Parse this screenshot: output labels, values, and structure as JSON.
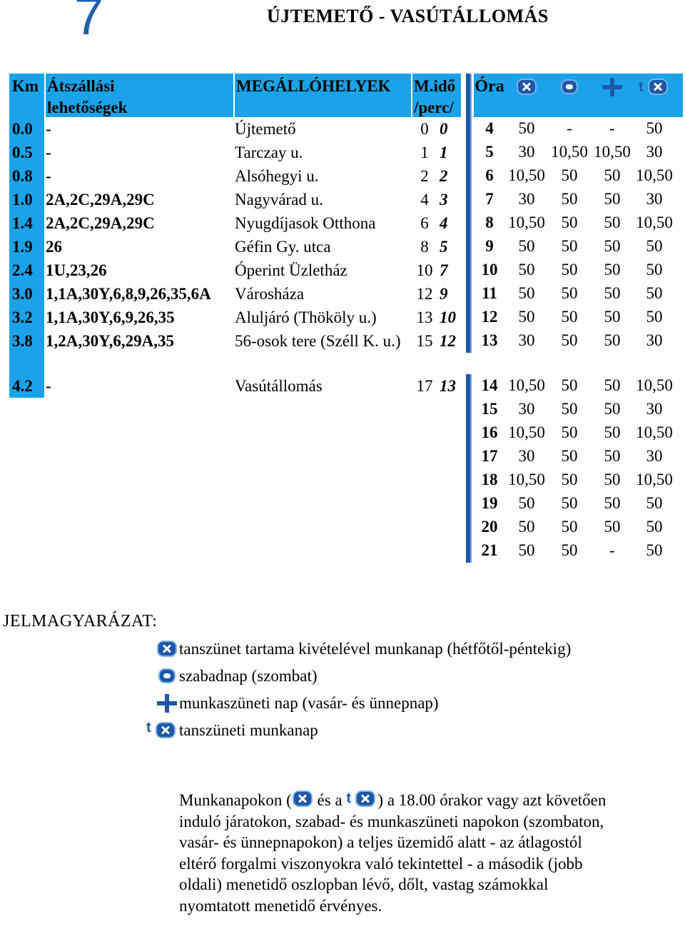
{
  "header": {
    "route_number": "7",
    "title": "ÚJTEMETŐ - VASÚTÁLLOMÁS"
  },
  "stops_table": {
    "headers": {
      "km": "Km",
      "transfers_line1": "Átszállási",
      "transfers_line2": "lehetőségek",
      "stops": "MEGÁLLÓHELYEK",
      "time_line1": "M.idő",
      "time_line2": "/perc/"
    },
    "rows": [
      {
        "km": "0.0",
        "transfers": "-",
        "stop": "Újtemető",
        "time": "0",
        "time_rush": "0"
      },
      {
        "km": "0.5",
        "transfers": "-",
        "stop": "Tarczay u.",
        "time": "1",
        "time_rush": "1"
      },
      {
        "km": "0.8",
        "transfers": "-",
        "stop": "Alsóhegyi u.",
        "time": "2",
        "time_rush": "2"
      },
      {
        "km": "1.0",
        "transfers": "2A,2C,29A,29C",
        "stop": "Nagyvárad u.",
        "time": "4",
        "time_rush": "3"
      },
      {
        "km": "1.4",
        "transfers": "2A,2C,29A,29C",
        "stop": "Nyugdíjasok Otthona",
        "time": "6",
        "time_rush": "4"
      },
      {
        "km": "1.9",
        "transfers": "26",
        "stop": "Géfin Gy. utca",
        "time": "8",
        "time_rush": "5"
      },
      {
        "km": "2.4",
        "transfers": "1U,23,26",
        "stop": "Óperint Üzletház",
        "time": "10",
        "time_rush": "7"
      },
      {
        "km": "3.0",
        "transfers": "1,1A,30Y,6,8,9,26,35,6A",
        "stop": "Városháza",
        "time": "12",
        "time_rush": "9"
      },
      {
        "km": "3.2",
        "transfers": "1,1A,30Y,6,9,26,35",
        "stop": "Aluljáró (Thököly u.)",
        "time": "13",
        "time_rush": "10"
      },
      {
        "km": "3.8",
        "transfers": "1,2A,30Y,6,29A,35",
        "stop": "56-osok tere (Széll K. u.)",
        "time": "15",
        "time_rush": "12"
      },
      {
        "km": "4.2",
        "transfers": "-",
        "stop": "Vasútállomás",
        "time": "17",
        "time_rush": "13"
      }
    ]
  },
  "times_table": {
    "headers": {
      "hour": "Óra"
    },
    "column_icons": [
      "x-workday-icon",
      "circle-saturday-icon",
      "plus-holiday-icon",
      "t-x-school-break-icon"
    ],
    "rows": [
      {
        "h": "4",
        "c": [
          "50",
          "-",
          "-",
          "50"
        ]
      },
      {
        "h": "5",
        "c": [
          "30",
          "10,50",
          "10,50",
          "30"
        ]
      },
      {
        "h": "6",
        "c": [
          "10,50",
          "50",
          "50",
          "10,50"
        ]
      },
      {
        "h": "7",
        "c": [
          "30",
          "50",
          "50",
          "30"
        ]
      },
      {
        "h": "8",
        "c": [
          "10,50",
          "50",
          "50",
          "10,50"
        ]
      },
      {
        "h": "9",
        "c": [
          "50",
          "50",
          "50",
          "50"
        ]
      },
      {
        "h": "10",
        "c": [
          "50",
          "50",
          "50",
          "50"
        ]
      },
      {
        "h": "11",
        "c": [
          "50",
          "50",
          "50",
          "50"
        ]
      },
      {
        "h": "12",
        "c": [
          "50",
          "50",
          "50",
          "50"
        ]
      },
      {
        "h": "13",
        "c": [
          "30",
          "50",
          "50",
          "30"
        ]
      },
      {
        "h": "14",
        "c": [
          "10,50",
          "50",
          "50",
          "10,50"
        ]
      },
      {
        "h": "15",
        "c": [
          "30",
          "50",
          "50",
          "30"
        ]
      },
      {
        "h": "16",
        "c": [
          "10,50",
          "50",
          "50",
          "10,50"
        ]
      },
      {
        "h": "17",
        "c": [
          "30",
          "50",
          "50",
          "30"
        ]
      },
      {
        "h": "18",
        "c": [
          "10,50",
          "50",
          "50",
          "10,50"
        ]
      },
      {
        "h": "19",
        "c": [
          "50",
          "50",
          "50",
          "50"
        ]
      },
      {
        "h": "20",
        "c": [
          "50",
          "50",
          "50",
          "50"
        ]
      },
      {
        "h": "21",
        "c": [
          "50",
          "50",
          "-",
          "50"
        ]
      }
    ]
  },
  "legend": {
    "title": "JELMAGYARÁZAT:",
    "items": [
      {
        "icon": "x-workday-icon",
        "label": "tanszünet tartama kivételével munkanap (hétfőtől-péntekig)"
      },
      {
        "icon": "circle-saturday-icon",
        "label": "szabadnap (szombat)"
      },
      {
        "icon": "plus-holiday-icon",
        "label": "munkaszüneti nap (vasár- és ünnepnap)"
      },
      {
        "icon": "t-x-school-break-icon",
        "label": "tanszüneti munkanap"
      }
    ]
  },
  "note": {
    "part1": "Munkanapokon (",
    "part2": " és a ",
    "part3": ") a 18.00 órakor vagy azt követően induló járatokon, szabad- és munkaszüneti napokon (szombaton, vasár- és ünnepnapokon) a teljes üzemidő alatt - az átlagostól eltérő forgalmi viszonyokra való tekintettel - a második (jobb oldali) menetidő oszlopban lévő, dőlt, vastag számokkal nyomtatott menetidő érvényes."
  },
  "colors": {
    "header_blue": "#1aa3e8",
    "icon_blue": "#1c58a6",
    "route_number": "#1f5fa8"
  }
}
